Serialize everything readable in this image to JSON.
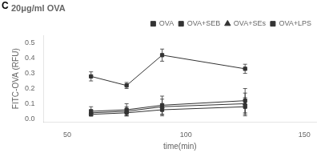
{
  "chart_data": {
    "type": "line",
    "title": "20μg/ml OVA",
    "xlabel": "time(min)",
    "ylabel": "FITC-OVA (RFU)",
    "annotations": [
      "C"
    ],
    "x": [
      60,
      75,
      90,
      125
    ],
    "series": [
      {
        "name": "OVA",
        "color": "#333333",
        "marker": "square",
        "line_style": "solid",
        "values": [
          0.28,
          0.22,
          0.42,
          0.33
        ],
        "errors": [
          0.03,
          0.02,
          0.04,
          0.03
        ]
      },
      {
        "name": "OVA+SEB",
        "color": "#333333",
        "marker": "square",
        "line_style": "solid",
        "values": [
          0.05,
          0.06,
          0.09,
          0.12
        ],
        "errors": [
          0.03,
          0.04,
          0.06,
          0.08
        ]
      },
      {
        "name": "OVA+SEs",
        "color": "#333333",
        "marker": "triangle",
        "line_style": "solid",
        "values": [
          0.04,
          0.05,
          0.08,
          0.1
        ],
        "errors": [
          0.02,
          0.03,
          0.05,
          0.07
        ]
      },
      {
        "name": "OVA+LPS",
        "color": "#333333",
        "marker": "square",
        "line_style": "solid",
        "values": [
          0.03,
          0.04,
          0.06,
          0.08
        ],
        "errors": [
          0.01,
          0.02,
          0.04,
          0.06
        ]
      }
    ],
    "xlim": [
      40,
      155
    ],
    "xticks": [
      50,
      100,
      150
    ],
    "ylim": [
      -0.02,
      0.55
    ],
    "yticks": [
      {
        "value": 0,
        "label": "0.0"
      },
      0.1,
      0.2,
      0.3,
      0.4,
      0.5
    ],
    "grid": false,
    "legend": "upper right"
  }
}
